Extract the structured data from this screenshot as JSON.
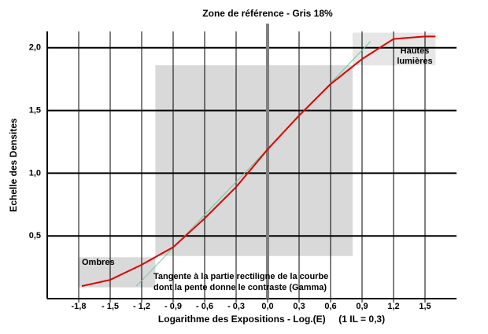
{
  "chart_data": {
    "type": "line",
    "title": "Zone de référence - Gris 18%",
    "x_label": "Logarithme des Expositions - Log.(E)     (1 IL = 0,3)",
    "y_label": "Echelle des Densites",
    "xlim": [
      -2.1,
      1.8
    ],
    "ylim": [
      0,
      2.13
    ],
    "xticks": [
      {
        "value": -1.8,
        "label": "-1,8"
      },
      {
        "value": -1.5,
        "label": "- 1,5"
      },
      {
        "value": -1.2,
        "label": "- 1,2"
      },
      {
        "value": -0.9,
        "label": "- 0,9"
      },
      {
        "value": -0.6,
        "label": "- 0,6"
      },
      {
        "value": -0.3,
        "label": "- 0,3"
      },
      {
        "value": 0,
        "label": "0,0"
      },
      {
        "value": 0.3,
        "label": "0,3"
      },
      {
        "value": 0.6,
        "label": "0,6"
      },
      {
        "value": 0.9,
        "label": "0,9"
      },
      {
        "value": 1.2,
        "label": "1,2"
      },
      {
        "value": 1.5,
        "label": "1,5"
      }
    ],
    "yticks": [
      {
        "value": 0.5,
        "label": "0,5"
      },
      {
        "value": 1,
        "label": "1,0"
      },
      {
        "value": 1.5,
        "label": "1,5"
      },
      {
        "value": 2,
        "label": "2,0"
      }
    ],
    "grid": true,
    "reference_line": {
      "x": 0,
      "color": "#808080"
    },
    "zones": [
      {
        "x": [
          -1.8,
          -1.07
        ],
        "y": [
          0.09,
          0.33
        ],
        "color": "#d9d9d9",
        "lines": [
          "Ombres"
        ]
      },
      {
        "x": [
          -1.07,
          0.81
        ],
        "y": [
          0.34,
          1.86
        ],
        "color": "#d9d9d9"
      },
      {
        "x": [
          0.81,
          1.6
        ],
        "y": [
          1.86,
          2.12
        ],
        "color": "#e6e6e6",
        "lines": [
          "Hautes",
          "lumières"
        ]
      }
    ],
    "series": [
      {
        "color": "#66cc99",
        "x": [
          -1.25,
          0.98
        ],
        "values": [
          0.1,
          2.05
        ]
      },
      {
        "color": "#e00000",
        "x": [
          -1.77,
          -1.5,
          -1.2,
          -0.9,
          -0.6,
          -0.3,
          0,
          0.3,
          0.6,
          0.9,
          1.2,
          1.5,
          1.6
        ],
        "values": [
          0.1,
          0.15,
          0.27,
          0.41,
          0.64,
          0.89,
          1.19,
          1.46,
          1.71,
          1.91,
          2.07,
          2.09,
          2.09
        ]
      }
    ],
    "annotation": {
      "lines": [
        "Tangente à la partie rectiligne de la courbe",
        "dont la pente donne le contraste (Gamma)"
      ]
    }
  }
}
